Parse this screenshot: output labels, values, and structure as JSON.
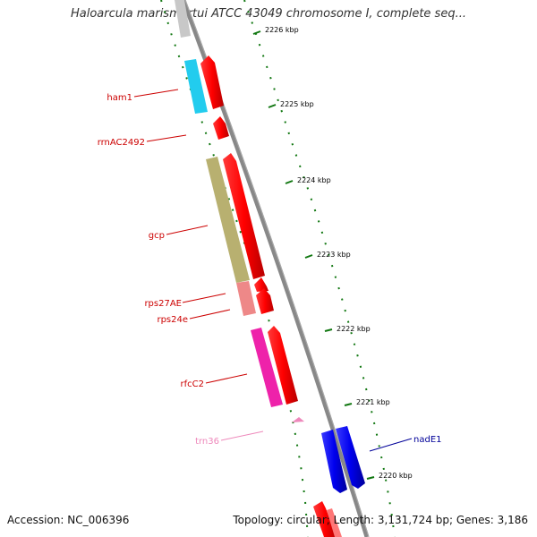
{
  "title": "Haloarcula marismortui ATCC 43049 chromosome I, complete seq...",
  "footer": {
    "accession": "Accession: NC_006396",
    "stats": "Topology: circular; Length: 3,131,724 bp; Genes: 3,186"
  },
  "ticks": [
    "2226 kbp",
    "2225 kbp",
    "2224 kbp",
    "2223 kbp",
    "2222 kbp",
    "2221 kbp",
    "2220 kbp"
  ],
  "genes": [
    {
      "name": "ham1",
      "color": "#cc0000"
    },
    {
      "name": "rrnAC2492",
      "color": "#cc0000"
    },
    {
      "name": "gcp",
      "color": "#cc0000"
    },
    {
      "name": "rps27AE",
      "color": "#cc0000"
    },
    {
      "name": "rps24e",
      "color": "#cc0000"
    },
    {
      "name": "rfcC2",
      "color": "#cc0000"
    },
    {
      "name": "trn36",
      "color": "#ee88bb"
    },
    {
      "name": "nadE1",
      "color": "#000099"
    }
  ],
  "colors": {
    "backbone": "#888888",
    "forward_cds": "#ff0000",
    "reverse_cds": "#0000ee",
    "tick": "#117711"
  }
}
